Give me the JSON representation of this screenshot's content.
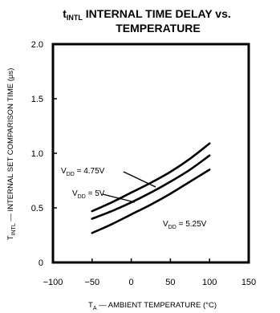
{
  "chart_data": {
    "type": "line",
    "title": {
      "prefix": "t",
      "prefix_sub": "INTL",
      "line1": " INTERNAL TIME DELAY vs.",
      "line2": "TEMPERATURE"
    },
    "xlabel": {
      "prefix": "T",
      "prefix_sub": "A",
      "text": " — AMBIENT TEMPERATURE (°C)"
    },
    "ylabel": {
      "prefix": "T",
      "prefix_sub": "INTL",
      "text": " — INTERNAL SET COMPARISON TIME (μs)"
    },
    "xlim": [
      -100,
      150
    ],
    "ylim": [
      0,
      2.0
    ],
    "x_ticks": [
      -100,
      -50,
      0,
      50,
      100,
      150
    ],
    "x_tick_labels": [
      "−100",
      "−50",
      "0",
      "50",
      "100",
      "150"
    ],
    "y_ticks": [
      0,
      0.5,
      1.0,
      1.5,
      2.0
    ],
    "y_tick_labels": [
      "0",
      "0.5",
      "1.0",
      "1.5",
      "2.0"
    ],
    "grid": false,
    "series": [
      {
        "name": "VDD = 4.75V",
        "label_main": "V",
        "label_sub": "DD",
        "label_rest": " = 4.75V",
        "x": [
          -50,
          -25,
          0,
          25,
          50,
          75,
          100
        ],
        "y": [
          0.47,
          0.55,
          0.64,
          0.73,
          0.83,
          0.95,
          1.09
        ]
      },
      {
        "name": "VDD = 5V",
        "label_main": "V",
        "label_sub": "DD",
        "label_rest": " = 5V",
        "x": [
          -50,
          -25,
          0,
          25,
          50,
          75,
          100
        ],
        "y": [
          0.4,
          0.47,
          0.55,
          0.64,
          0.74,
          0.85,
          0.98
        ]
      },
      {
        "name": "VDD = 5.25V",
        "label_main": "V",
        "label_sub": "DD",
        "label_rest": " = 5.25V",
        "x": [
          -50,
          -25,
          0,
          25,
          50,
          75,
          100
        ],
        "y": [
          0.27,
          0.35,
          0.44,
          0.53,
          0.63,
          0.74,
          0.85
        ]
      }
    ]
  }
}
